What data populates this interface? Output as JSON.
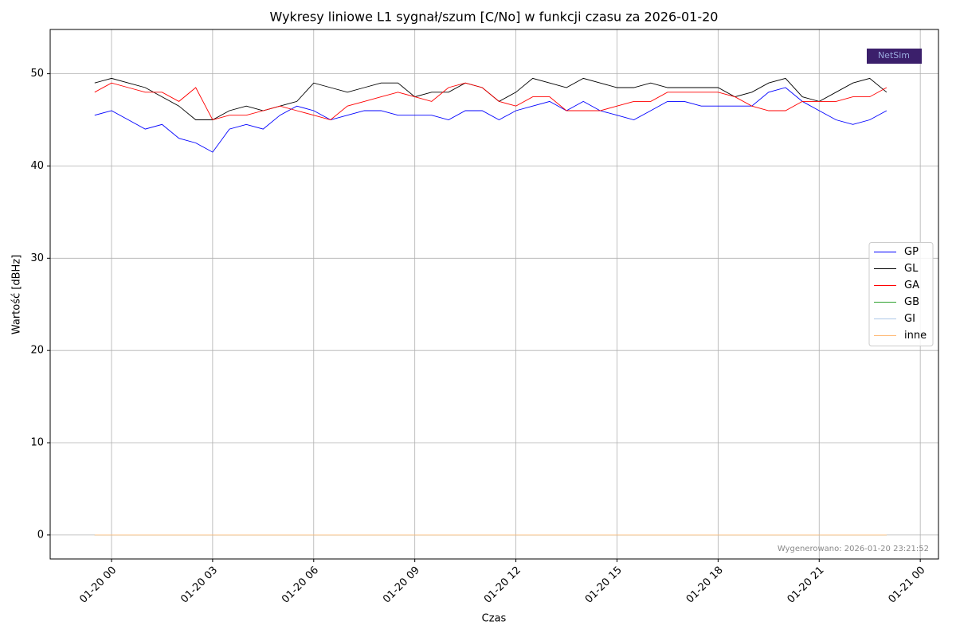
{
  "chart_data": {
    "type": "line",
    "title": "Wykresy liniowe L1 sygnał/szum [C/No] w funkcji czasu za 2026-01-20",
    "xlabel": "Czas",
    "ylabel": "Wartość [dBHz]",
    "annotation": "Wygenerowano: 2026-01-20 23:21:52",
    "logo": "NetSim",
    "x": [
      -0.5,
      0,
      0.5,
      1,
      1.5,
      2,
      2.5,
      3,
      3.5,
      4,
      4.5,
      5,
      5.5,
      6,
      6.5,
      7,
      7.5,
      8,
      8.5,
      9,
      9.5,
      10,
      10.5,
      11,
      11.5,
      12,
      12.5,
      13,
      13.5,
      14,
      14.5,
      15,
      15.5,
      16,
      16.5,
      17,
      17.5,
      18,
      18.5,
      19,
      19.5,
      20,
      20.5,
      21,
      21.5,
      22,
      22.5,
      23
    ],
    "series": [
      {
        "name": "GP",
        "color": "#0000ff",
        "values": [
          45.5,
          46,
          45,
          44,
          44.5,
          43,
          42.5,
          41.5,
          44,
          44.5,
          44,
          45.5,
          46.5,
          46,
          45,
          45.5,
          46,
          46,
          45.5,
          45.5,
          45.5,
          45,
          46,
          46,
          45,
          46,
          46.5,
          47,
          46,
          47,
          46,
          45.5,
          45,
          46,
          47,
          47,
          46.5,
          46.5,
          46.5,
          46.5,
          48,
          48.5,
          47,
          46,
          45,
          44.5,
          45,
          46
        ]
      },
      {
        "name": "GL",
        "color": "#000000",
        "values": [
          49,
          49.5,
          49,
          48.5,
          47.5,
          46.5,
          45,
          45,
          46,
          46.5,
          46,
          46.5,
          47,
          49,
          48.5,
          48,
          48.5,
          49,
          49,
          47.5,
          48,
          48,
          49,
          48.5,
          47,
          48,
          49.5,
          49,
          48.5,
          49.5,
          49,
          48.5,
          48.5,
          49,
          48.5,
          48.5,
          48.5,
          48.5,
          47.5,
          48,
          49,
          49.5,
          47.5,
          47,
          48,
          49,
          49.5,
          48
        ]
      },
      {
        "name": "GA",
        "color": "#ff0000",
        "values": [
          48,
          49,
          48.5,
          48,
          48,
          47,
          48.5,
          45,
          45.5,
          45.5,
          46,
          46.5,
          46,
          45.5,
          45,
          46.5,
          47,
          47.5,
          48,
          47.5,
          47,
          48.5,
          49,
          48.5,
          47,
          46.5,
          47.5,
          47.5,
          46,
          46,
          46,
          46.5,
          47,
          47,
          48,
          48,
          48,
          48,
          47.5,
          46.5,
          46,
          46,
          47,
          47,
          47,
          47.5,
          47.5,
          48.5
        ]
      },
      {
        "name": "GB",
        "color": "#2ca02c",
        "values": [
          0,
          0,
          0,
          0,
          0,
          0,
          0,
          0,
          0,
          0,
          0,
          0,
          0,
          0,
          0,
          0,
          0,
          0,
          0,
          0,
          0,
          0,
          0,
          0,
          0,
          0,
          0,
          0,
          0,
          0,
          0,
          0,
          0,
          0,
          0,
          0,
          0,
          0,
          0,
          0,
          0,
          0,
          0,
          0,
          0,
          0,
          0,
          0
        ]
      },
      {
        "name": "GI",
        "color": "#aec7e8",
        "values": [
          0,
          0,
          0,
          0,
          0,
          0,
          0,
          0,
          0,
          0,
          0,
          0,
          0,
          0,
          0,
          0,
          0,
          0,
          0,
          0,
          0,
          0,
          0,
          0,
          0,
          0,
          0,
          0,
          0,
          0,
          0,
          0,
          0,
          0,
          0,
          0,
          0,
          0,
          0,
          0,
          0,
          0,
          0,
          0,
          0,
          0,
          0,
          0
        ]
      },
      {
        "name": "inne",
        "color": "#ffbb78",
        "values": [
          0,
          0,
          0,
          0,
          0,
          0,
          0,
          0,
          0,
          0,
          0,
          0,
          0,
          0,
          0,
          0,
          0,
          0,
          0,
          0,
          0,
          0,
          0,
          0,
          0,
          0,
          0,
          0,
          0,
          0,
          0,
          0,
          0,
          0,
          0,
          0,
          0,
          0,
          0,
          0,
          0,
          0,
          0,
          0,
          0,
          0,
          0,
          0
        ]
      }
    ],
    "xlim": [
      -1.82,
      24.54
    ],
    "xticks": [
      {
        "value": 0,
        "label": "01-20 00"
      },
      {
        "value": 3,
        "label": "01-20 03"
      },
      {
        "value": 6,
        "label": "01-20 06"
      },
      {
        "value": 9,
        "label": "01-20 09"
      },
      {
        "value": 12,
        "label": "01-20 12"
      },
      {
        "value": 15,
        "label": "01-20 15"
      },
      {
        "value": 18,
        "label": "01-20 18"
      },
      {
        "value": 21,
        "label": "01-20 21"
      },
      {
        "value": 24,
        "label": "01-21 00"
      }
    ],
    "ylim": [
      -2.6,
      54.8
    ],
    "yticks": [
      0,
      10,
      20,
      30,
      40,
      50
    ],
    "grid": true,
    "legend": "right"
  }
}
